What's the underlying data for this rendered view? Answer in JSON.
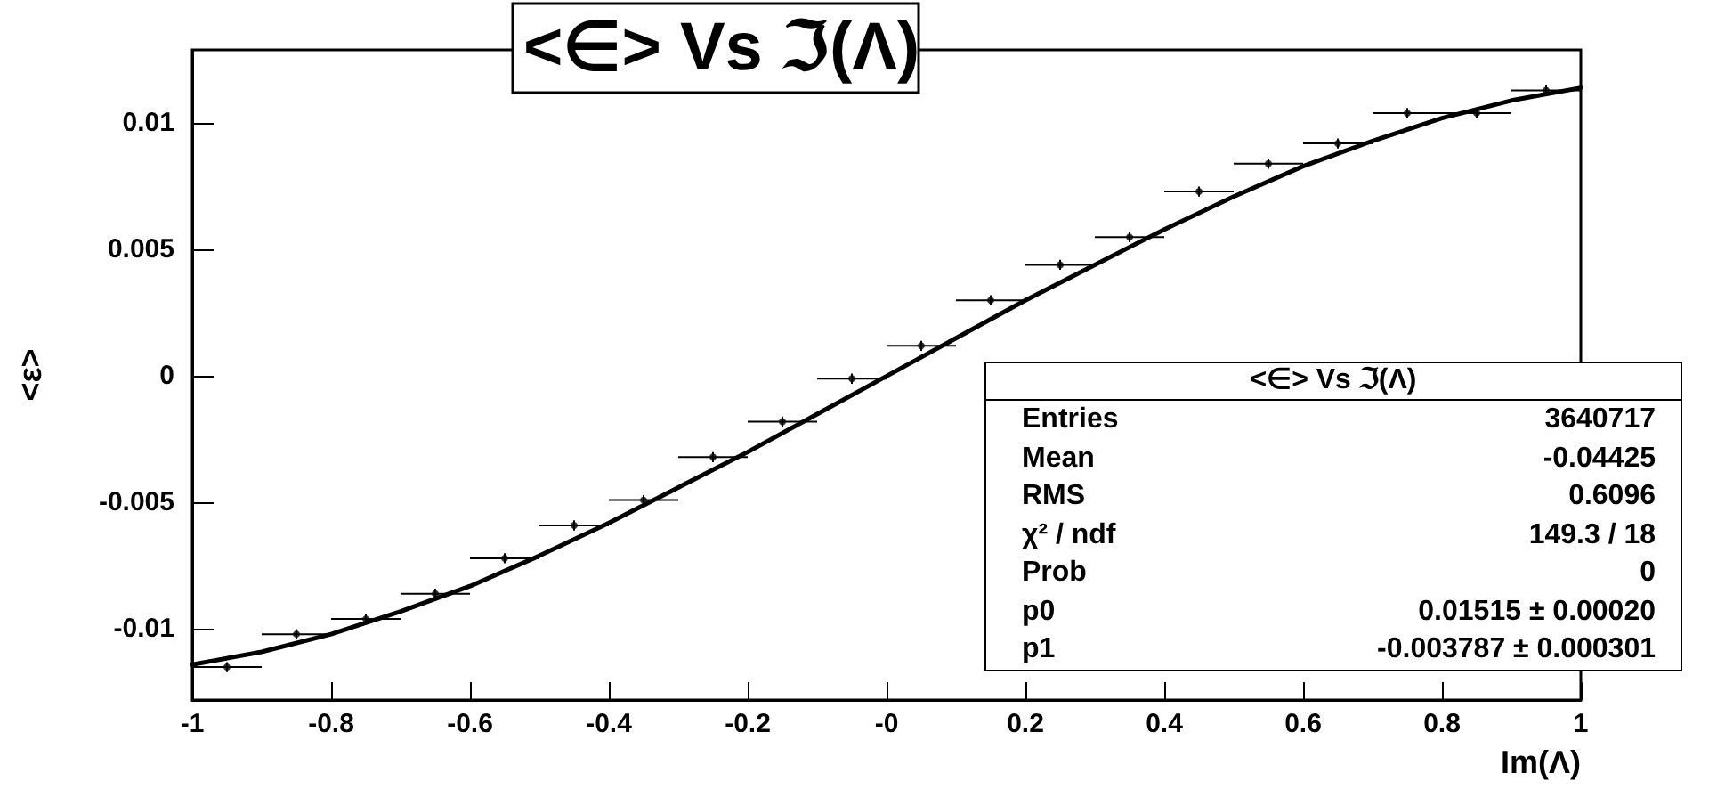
{
  "chart_data": {
    "type": "scatter",
    "title": "<∈> Vs ℑ(Λ)",
    "xlabel": "Im(Λ)",
    "ylabel": "<ε>",
    "xlim": [
      -1,
      1
    ],
    "xticks": [
      -1,
      -0.8,
      -0.6,
      -0.4,
      -0.2,
      {
        "value": 0,
        "label": "-0"
      },
      0.2,
      0.4,
      0.6,
      0.8,
      1
    ],
    "ylim": [
      -0.0128,
      0.0129
    ],
    "yticks": [
      -0.01,
      -0.005,
      0,
      0.005,
      0.01
    ],
    "grid": false,
    "series": [
      {
        "color": "#000000",
        "marker": "circle",
        "x": [
          -0.95,
          -0.85,
          -0.75,
          -0.65,
          -0.55,
          -0.45,
          -0.35,
          -0.25,
          -0.15,
          -0.05,
          0.05,
          0.15,
          0.25,
          0.35,
          0.45,
          0.55,
          0.65,
          0.75,
          0.85,
          0.95
        ],
        "values": [
          -0.0115,
          -0.0102,
          -0.0096,
          -0.0086,
          -0.0072,
          -0.0059,
          -0.0049,
          -0.0032,
          -0.0018,
          -0.0001,
          0.0012,
          0.003,
          0.0044,
          0.0055,
          0.0073,
          0.0084,
          0.0092,
          0.0104,
          0.0104,
          0.0113
        ],
        "errors": [
          0.0002,
          0.0002,
          0.0002,
          0.0002,
          0.0002,
          0.0002,
          0.0002,
          0.0002,
          0.0002,
          0.0002,
          0.0002,
          0.0002,
          0.0002,
          0.0002,
          0.0002,
          0.0002,
          0.0002,
          0.0002,
          0.0002,
          0.0002
        ],
        "xerrors": [
          0.05,
          0.05,
          0.05,
          0.05,
          0.05,
          0.05,
          0.05,
          0.05,
          0.05,
          0.05,
          0.05,
          0.05,
          0.05,
          0.05,
          0.05,
          0.05,
          0.05,
          0.05,
          0.05,
          0.05
        ]
      },
      {
        "type": "line",
        "color": "#000000",
        "line_style": "solid",
        "marker": "none",
        "x": [
          -1,
          -0.9,
          -0.8,
          -0.7,
          -0.6,
          -0.5,
          -0.4,
          -0.3,
          -0.2,
          -0.1,
          0,
          0.1,
          0.2,
          0.3,
          0.4,
          0.5,
          0.6,
          0.7,
          0.8,
          0.9,
          1
        ],
        "values": [
          -0.0114,
          -0.0109,
          -0.0102,
          -0.0093,
          -0.0083,
          -0.0071,
          -0.0058,
          -0.0044,
          -0.003,
          -0.0015,
          0,
          0.0015,
          0.003,
          0.0044,
          0.0058,
          0.0071,
          0.0083,
          0.0093,
          0.0102,
          0.0109,
          0.0114
        ]
      }
    ],
    "annotations": [
      "<∈> Vs ℑ(Λ)",
      "Entries",
      "3640717",
      "Mean",
      "-0.04425",
      "RMS",
      "0.6096",
      "χ² / ndf",
      "149.3 / 18",
      "Prob",
      "0",
      "p0",
      "0.01515 ± 0.00020",
      "p1",
      "-0.003787 ± 0.000301"
    ]
  }
}
